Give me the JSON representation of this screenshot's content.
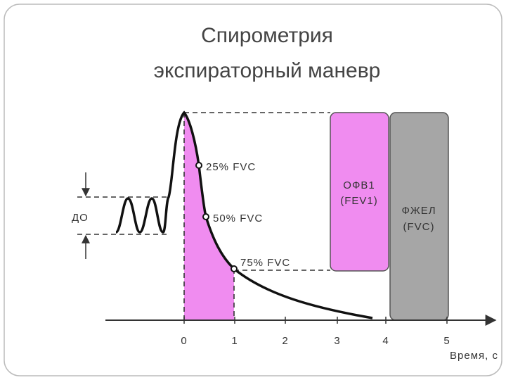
{
  "slide": {
    "title_lines": [
      "Спирометрия",
      "экспираторный маневр"
    ]
  },
  "diagram": {
    "curve_labels": [
      "25% FVC",
      "50% FVC",
      "75% FVC"
    ],
    "tidal_label": "ДО",
    "fev1_box": {
      "line1": "ОФВ1",
      "line2": "(FEV1)"
    },
    "fvc_box": {
      "line1": "ФЖЕЛ",
      "line2": "(FVC)"
    },
    "x_ticks": [
      "0",
      "1",
      "2",
      "3",
      "4",
      "5"
    ],
    "x_axis_label": "Время, с"
  }
}
